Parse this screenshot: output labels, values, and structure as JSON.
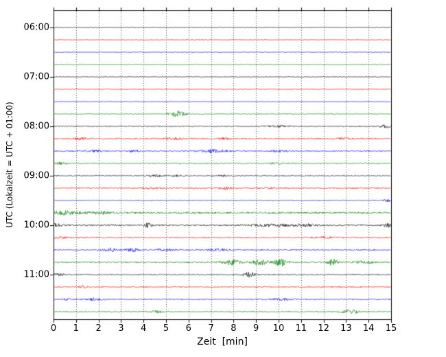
{
  "chart_data": {
    "type": "line",
    "subtype": "seismogram-drumplot",
    "title": "",
    "xlabel": "Zeit  [min]",
    "ylabel": "UTC (Lokalzeit = UTC + 01:00)",
    "x_range": [
      0,
      15
    ],
    "x_ticks": [
      "0",
      "1",
      "2",
      "3",
      "4",
      "5",
      "6",
      "7",
      "8",
      "9",
      "10",
      "11",
      "12",
      "13",
      "14",
      "15"
    ],
    "y_tick_labels": [
      "06:00",
      "07:00",
      "08:00",
      "09:00",
      "10:00",
      "11:00"
    ],
    "grid": "dotted-vertical-per-minute",
    "legend": "none",
    "minutes_per_trace": 15,
    "traces_per_hour": 4,
    "colors_cycle": [
      "#000000",
      "#ff0000",
      "#0000ff",
      "#008000"
    ],
    "traces": [
      {
        "start": "06:00",
        "color": "#000000",
        "noise": 0.5,
        "events": []
      },
      {
        "start": "06:15",
        "color": "#ff0000",
        "noise": 0.55,
        "events": []
      },
      {
        "start": "06:30",
        "color": "#0000ff",
        "noise": 0.5,
        "events": []
      },
      {
        "start": "06:45",
        "color": "#008000",
        "noise": 0.55,
        "events": []
      },
      {
        "start": "07:00",
        "color": "#000000",
        "noise": 0.5,
        "events": []
      },
      {
        "start": "07:15",
        "color": "#ff0000",
        "noise": 0.6,
        "events": []
      },
      {
        "start": "07:30",
        "color": "#0000ff",
        "noise": 0.5,
        "events": []
      },
      {
        "start": "07:45",
        "color": "#008000",
        "noise": 0.6,
        "events": [
          {
            "t": 5.5,
            "amp": 4.5,
            "w": 0.22
          }
        ]
      },
      {
        "start": "08:00",
        "color": "#000000",
        "noise": 0.65,
        "events": [
          {
            "t": 10.0,
            "amp": 1.4,
            "w": 0.35
          },
          {
            "t": 14.75,
            "amp": 2.2,
            "w": 0.15
          }
        ]
      },
      {
        "start": "08:15",
        "color": "#ff0000",
        "noise": 0.9,
        "events": [
          {
            "t": 1.2,
            "amp": 1.2,
            "w": 0.2
          },
          {
            "t": 5.4,
            "amp": 1.3,
            "w": 0.25
          },
          {
            "t": 7.6,
            "amp": 1.2,
            "w": 0.2
          },
          {
            "t": 12.9,
            "amp": 1.2,
            "w": 0.2
          }
        ]
      },
      {
        "start": "08:30",
        "color": "#0000ff",
        "noise": 0.85,
        "events": [
          {
            "t": 1.8,
            "amp": 1.3,
            "w": 0.25
          },
          {
            "t": 3.6,
            "amp": 1.3,
            "w": 0.2
          },
          {
            "t": 7.1,
            "amp": 2.2,
            "w": 0.4
          },
          {
            "t": 10.0,
            "amp": 1.1,
            "w": 0.25
          }
        ]
      },
      {
        "start": "08:45",
        "color": "#008000",
        "noise": 0.75,
        "events": [
          {
            "t": 0.3,
            "amp": 1.3,
            "w": 0.2
          },
          {
            "t": 9.9,
            "amp": 1.0,
            "w": 0.25
          }
        ]
      },
      {
        "start": "09:00",
        "color": "#000000",
        "noise": 0.65,
        "events": [
          {
            "t": 4.5,
            "amp": 1.1,
            "w": 0.3
          },
          {
            "t": 5.5,
            "amp": 1.1,
            "w": 0.2
          },
          {
            "t": 7.5,
            "amp": 0.9,
            "w": 0.3
          }
        ]
      },
      {
        "start": "09:15",
        "color": "#ff0000",
        "noise": 0.85,
        "events": [
          {
            "t": 4.4,
            "amp": 1.1,
            "w": 0.25
          },
          {
            "t": 7.6,
            "amp": 1.6,
            "w": 0.25
          },
          {
            "t": 9.5,
            "amp": 1.1,
            "w": 0.25
          }
        ]
      },
      {
        "start": "09:30",
        "color": "#0000ff",
        "noise": 0.65,
        "events": [
          {
            "t": 14.85,
            "amp": 1.8,
            "w": 0.12
          }
        ]
      },
      {
        "start": "09:45",
        "color": "#008000",
        "noise": 1.3,
        "events": [
          {
            "t": 0.4,
            "amp": 2.2,
            "w": 0.5
          },
          {
            "t": 2.0,
            "amp": 1.3,
            "w": 0.4
          }
        ]
      },
      {
        "start": "10:00",
        "color": "#000000",
        "noise": 1.0,
        "events": [
          {
            "t": 0.15,
            "amp": 2.2,
            "w": 0.2
          },
          {
            "t": 4.2,
            "amp": 2.8,
            "w": 0.12
          },
          {
            "t": 9.8,
            "amp": 1.6,
            "w": 0.8
          },
          {
            "t": 11.2,
            "amp": 1.3,
            "w": 0.4
          },
          {
            "t": 14.85,
            "amp": 2.8,
            "w": 0.12
          }
        ]
      },
      {
        "start": "10:15",
        "color": "#ff0000",
        "noise": 0.85,
        "events": [
          {
            "t": 0.3,
            "amp": 1.3,
            "w": 0.2
          },
          {
            "t": 12.0,
            "amp": 1.1,
            "w": 0.3
          }
        ]
      },
      {
        "start": "10:30",
        "color": "#0000ff",
        "noise": 0.85,
        "events": [
          {
            "t": 2.5,
            "amp": 2.8,
            "w": 0.2
          },
          {
            "t": 3.5,
            "amp": 2.3,
            "w": 0.2
          },
          {
            "t": 5.0,
            "amp": 1.4,
            "w": 0.3
          },
          {
            "t": 7.3,
            "amp": 1.4,
            "w": 0.3
          }
        ]
      },
      {
        "start": "10:45",
        "color": "#008000",
        "noise": 0.95,
        "events": [
          {
            "t": 7.9,
            "amp": 3.5,
            "w": 0.3
          },
          {
            "t": 9.1,
            "amp": 4.5,
            "w": 0.25
          },
          {
            "t": 10.1,
            "amp": 5.5,
            "w": 0.2
          },
          {
            "t": 12.4,
            "amp": 4.5,
            "w": 0.15
          },
          {
            "t": 13.8,
            "amp": 1.8,
            "w": 0.3
          }
        ]
      },
      {
        "start": "11:00",
        "color": "#000000",
        "noise": 0.75,
        "events": [
          {
            "t": 0.2,
            "amp": 1.4,
            "w": 0.2
          },
          {
            "t": 8.7,
            "amp": 3.5,
            "w": 0.18
          }
        ]
      },
      {
        "start": "11:15",
        "color": "#ff0000",
        "noise": 0.8,
        "events": [
          {
            "t": 1.3,
            "amp": 1.8,
            "w": 0.12
          }
        ]
      },
      {
        "start": "11:30",
        "color": "#0000ff",
        "noise": 0.75,
        "events": [
          {
            "t": 0.6,
            "amp": 1.4,
            "w": 0.1
          },
          {
            "t": 1.8,
            "amp": 1.9,
            "w": 0.25
          },
          {
            "t": 10.1,
            "amp": 1.6,
            "w": 0.3
          }
        ]
      },
      {
        "start": "11:45",
        "color": "#008000",
        "noise": 0.75,
        "events": [
          {
            "t": 4.6,
            "amp": 1.4,
            "w": 0.2
          },
          {
            "t": 13.2,
            "amp": 3.2,
            "w": 0.25
          }
        ]
      }
    ]
  }
}
